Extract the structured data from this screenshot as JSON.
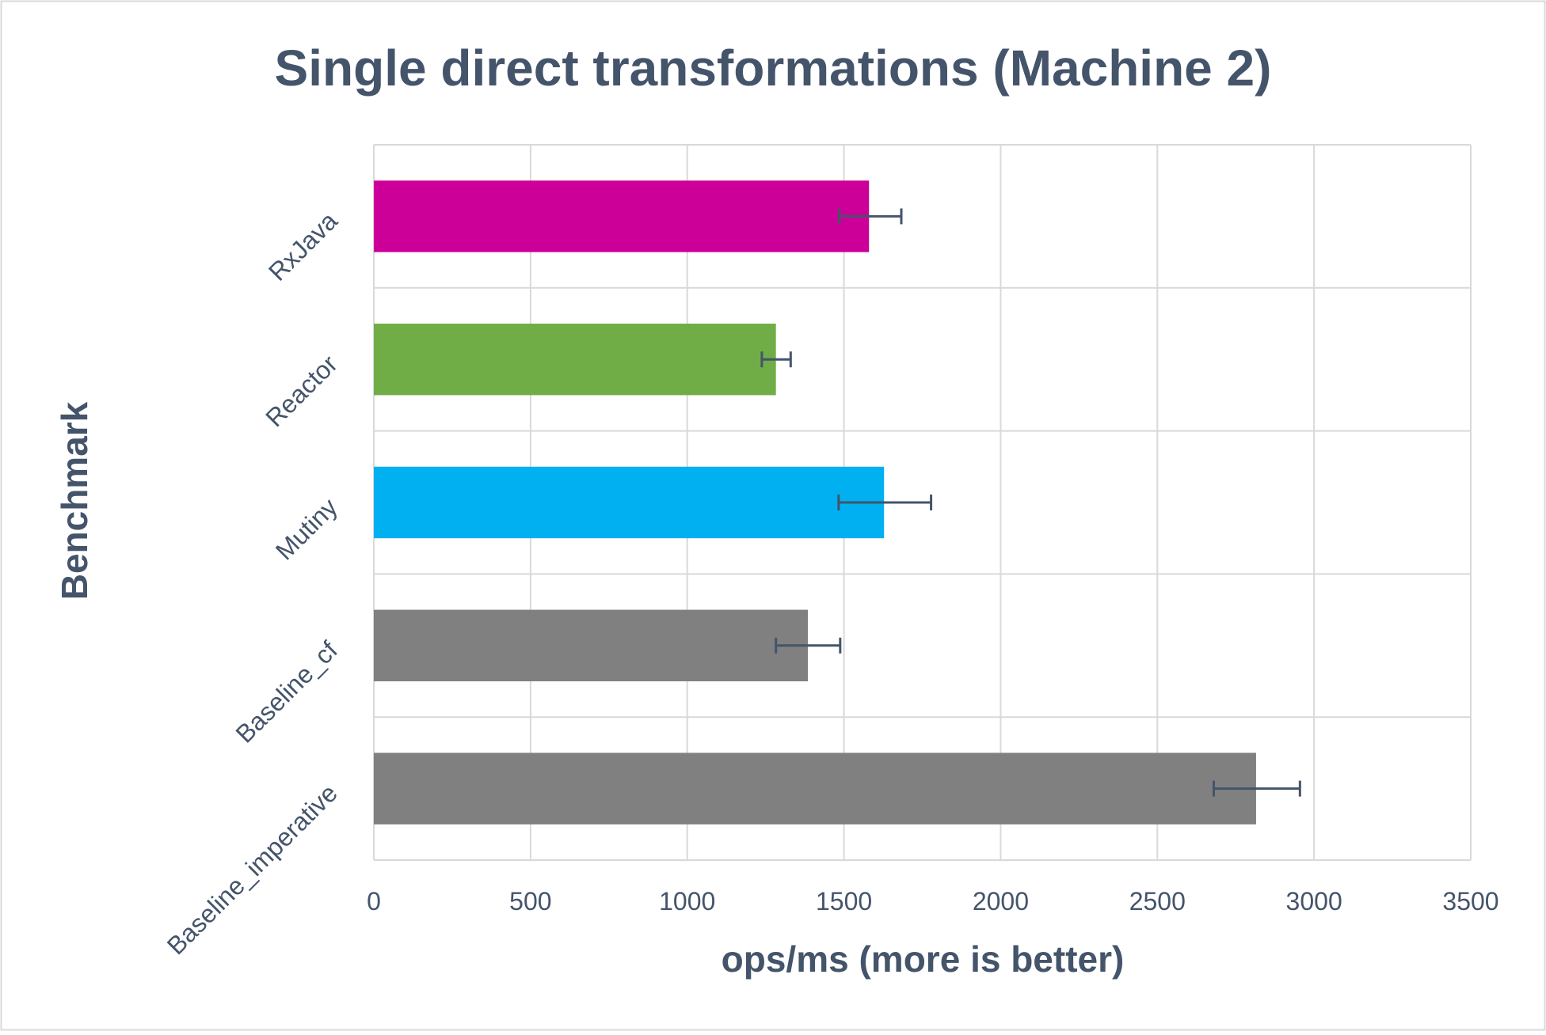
{
  "chart_data": {
    "type": "bar",
    "orientation": "horizontal",
    "title": "Single direct transformations (Machine 2)",
    "xlabel": "ops/ms (more is better)",
    "ylabel": "Benchmark",
    "xlim": [
      0,
      3500
    ],
    "xticks": [
      0,
      500,
      1000,
      1500,
      2000,
      2500,
      3000,
      3500
    ],
    "grid": true,
    "legend": "none",
    "categories": [
      "RxJava",
      "Reactor",
      "Mutiny",
      "Baseline_cf",
      "Baseline_imperative"
    ],
    "values": [
      1580,
      1283,
      1628,
      1385,
      2815
    ],
    "error_low": [
      1485,
      1238,
      1483,
      1283,
      2680
    ],
    "error_high": [
      1683,
      1330,
      1778,
      1488,
      2955
    ],
    "colors": [
      "#cc0099",
      "#70ad47",
      "#00b0f0",
      "#808080",
      "#808080"
    ],
    "error_bar_color": "#44546a"
  }
}
